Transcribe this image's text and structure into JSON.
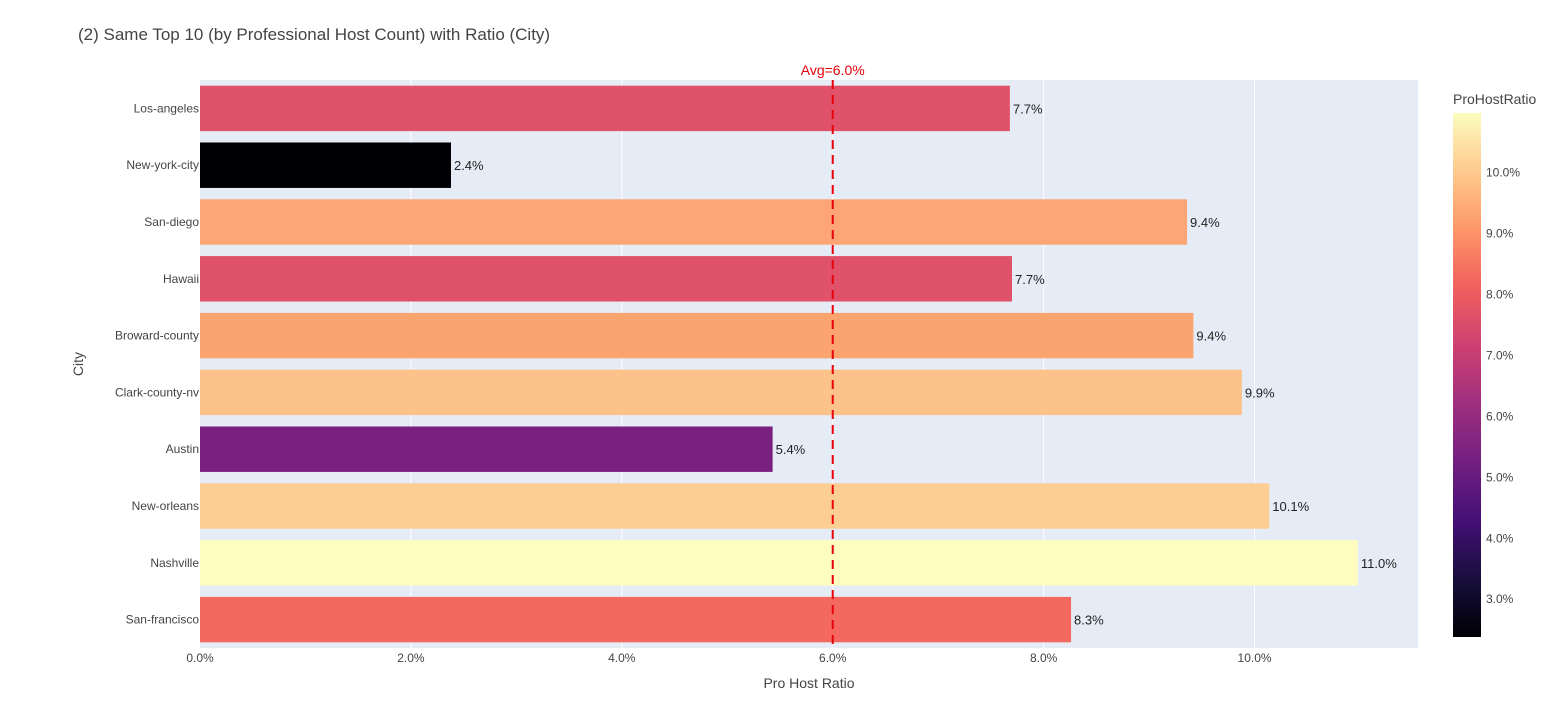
{
  "chart_data": {
    "type": "bar",
    "orientation": "horizontal",
    "title": "(2) Same Top 10 (by Professional Host Count) with Ratio (City)",
    "xlabel": "Pro Host Ratio",
    "ylabel": "City",
    "categories": [
      "Los-angeles",
      "New-york-city",
      "San-diego",
      "Hawaii",
      "Broward-county",
      "Clark-county-nv",
      "Austin",
      "New-orleans",
      "Nashville",
      "San-francisco"
    ],
    "values": [
      0.0768,
      0.0238,
      0.0936,
      0.077,
      0.0942,
      0.0988,
      0.0543,
      0.1014,
      0.1098,
      0.0826
    ],
    "data_labels": [
      "7.7%",
      "2.4%",
      "9.4%",
      "7.7%",
      "9.4%",
      "9.9%",
      "5.4%",
      "10.1%",
      "11.0%",
      "8.3%"
    ],
    "bar_colors": [
      "#e05269",
      "#000004",
      "#fda574",
      "#e05269",
      "#fca470",
      "#fdc28a",
      "#7a2080",
      "#fdce94",
      "#fcfdbf",
      "#f3685f"
    ],
    "xlim": [
      0,
      0.1155
    ],
    "xticks": [
      0,
      0.02,
      0.04,
      0.06,
      0.08,
      0.1
    ],
    "xtick_labels": [
      "0.0%",
      "2.0%",
      "4.0%",
      "6.0%",
      "8.0%",
      "10.0%"
    ],
    "grid": true,
    "reference_line": {
      "value": 0.06,
      "label": "Avg=6.0%",
      "color": "#e8000b"
    },
    "colorbar": {
      "title": "ProHostRatio",
      "range": [
        0.0238,
        0.1098
      ],
      "ticks": [
        0.03,
        0.04,
        0.05,
        0.06,
        0.07,
        0.08,
        0.09,
        0.1
      ],
      "tick_labels": [
        "3.0%",
        "4.0%",
        "5.0%",
        "6.0%",
        "7.0%",
        "8.0%",
        "9.0%",
        "10.0%"
      ],
      "colorscale": [
        "#000004",
        "#180f3d",
        "#440f76",
        "#721f81",
        "#9e2f7f",
        "#cd4071",
        "#f1605d",
        "#fd9668",
        "#feca8d",
        "#fcfdbf"
      ]
    }
  }
}
